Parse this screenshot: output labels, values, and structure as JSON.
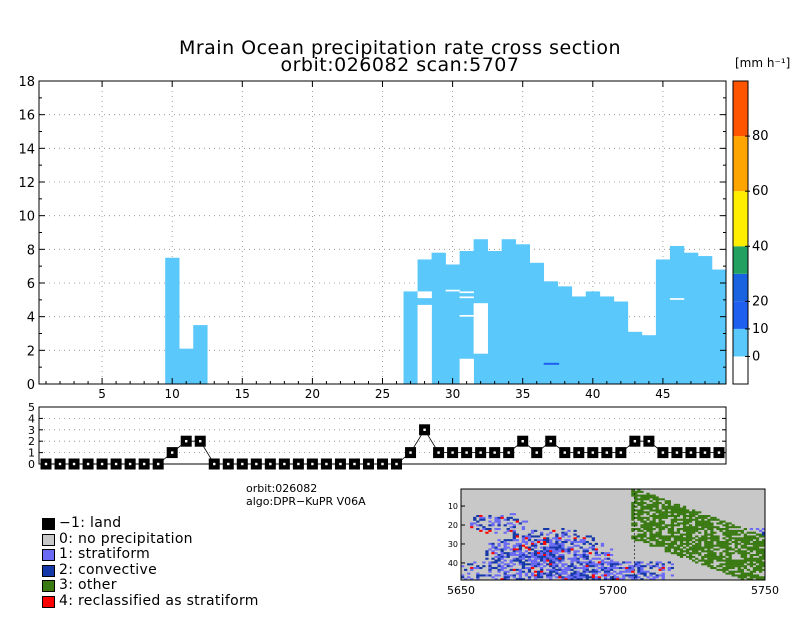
{
  "title": {
    "line1": "Mrain Ocean precipitation rate cross section",
    "line2": "orbit:026082    scan:5707"
  },
  "info": {
    "orbit": "orbit:026082",
    "algo": "algo:DPR−KuPR V06A"
  },
  "colorbar": {
    "unit": "[mm h⁻¹]",
    "colors": [
      "#ffffff",
      "#5ac8fa",
      "#1e5ff0",
      "#1a63e0",
      "#21a060",
      "#ffee00",
      "#ffa500",
      "#ff5500"
    ],
    "bins": [
      -10,
      0,
      10,
      20,
      30,
      40,
      60,
      80,
      100
    ],
    "labels": [
      "0",
      "10",
      "20",
      "40",
      "60",
      "80"
    ]
  },
  "legend": [
    {
      "label": "−1: land",
      "color": "#000000"
    },
    {
      "label": "0: no precipitation",
      "color": "#c8c8c8"
    },
    {
      "label": "1: stratiform",
      "color": "#6a6af5"
    },
    {
      "label": "2: convective",
      "color": "#1438a8"
    },
    {
      "label": "3: other",
      "color": "#3a7a12"
    },
    {
      "label": "4: reclassified as stratiform",
      "color": "#ff0000"
    }
  ],
  "chart_data": [
    {
      "type": "heatmap",
      "title": "Mrain Ocean precipitation rate cross section",
      "xlim": [
        1,
        49
      ],
      "ylim": [
        0,
        18
      ],
      "x_ticks": [
        5,
        10,
        15,
        20,
        25,
        30,
        35,
        40,
        45
      ],
      "y_ticks": [
        0,
        2,
        4,
        6,
        8,
        10,
        12,
        14,
        16,
        18
      ],
      "grid": true,
      "fill_color": "#5ac8fa",
      "columns": [
        {
          "x": 10,
          "top": 7.5
        },
        {
          "x": 11,
          "top": 2.1
        },
        {
          "x": 12,
          "top": 3.5
        },
        {
          "x": 27,
          "top": 5.5
        },
        {
          "x": 28,
          "top": 7.4
        },
        {
          "x": 29,
          "top": 7.8
        },
        {
          "x": 30,
          "top": 7.1
        },
        {
          "x": 31,
          "top": 7.9
        },
        {
          "x": 32,
          "top": 8.6
        },
        {
          "x": 33,
          "top": 7.9
        },
        {
          "x": 34,
          "top": 8.6
        },
        {
          "x": 35,
          "top": 8.3
        },
        {
          "x": 36,
          "top": 7.2
        },
        {
          "x": 37,
          "top": 6.1
        },
        {
          "x": 38,
          "top": 5.8
        },
        {
          "x": 39,
          "top": 5.2
        },
        {
          "x": 40,
          "top": 5.5
        },
        {
          "x": 41,
          "top": 5.2
        },
        {
          "x": 42,
          "top": 4.9
        },
        {
          "x": 43,
          "top": 3.1
        },
        {
          "x": 44,
          "top": 2.9
        },
        {
          "x": 45,
          "top": 7.4
        },
        {
          "x": 46,
          "top": 8.2
        },
        {
          "x": 47,
          "top": 7.8
        },
        {
          "x": 48,
          "top": 7.6
        },
        {
          "x": 49,
          "top": 6.8
        }
      ],
      "gaps": [
        {
          "x": 28,
          "from": 0,
          "to": 4.7
        },
        {
          "x": 28,
          "from": 5.1,
          "to": 5.5
        },
        {
          "x": 30,
          "from": 5.5,
          "to": 5.6
        },
        {
          "x": 31,
          "from": 0,
          "to": 1.5
        },
        {
          "x": 31,
          "from": 4.0,
          "to": 4.1
        },
        {
          "x": 31,
          "from": 5.1,
          "to": 5.2
        },
        {
          "x": 31,
          "from": 5.4,
          "to": 5.5
        },
        {
          "x": 32,
          "from": 1.8,
          "to": 4.8
        },
        {
          "x": 46,
          "from": 5.0,
          "to": 5.1
        }
      ],
      "dark_marks": [
        {
          "x": 37,
          "y": 1.2
        }
      ]
    },
    {
      "type": "line",
      "name": "precipitation type flag",
      "xlim": [
        1,
        49
      ],
      "ylim": [
        0,
        5
      ],
      "y_ticks": [
        0,
        1,
        2,
        3,
        4,
        5
      ],
      "values": [
        0,
        0,
        0,
        0,
        0,
        0,
        0,
        0,
        0,
        1,
        2,
        2,
        0,
        0,
        0,
        0,
        0,
        0,
        0,
        0,
        0,
        0,
        0,
        0,
        0,
        0,
        1,
        3,
        1,
        1,
        1,
        1,
        1,
        1,
        2,
        1,
        2,
        1,
        1,
        1,
        1,
        1,
        2,
        2,
        1,
        1,
        1,
        1,
        1
      ]
    },
    {
      "type": "heatmap",
      "name": "precipitation type map",
      "x_ticks": [
        5650,
        5700,
        5750
      ],
      "y_ticks": [
        10,
        20,
        30,
        40
      ],
      "xlim": [
        5650,
        5750
      ],
      "ylim": [
        1,
        49
      ]
    }
  ]
}
